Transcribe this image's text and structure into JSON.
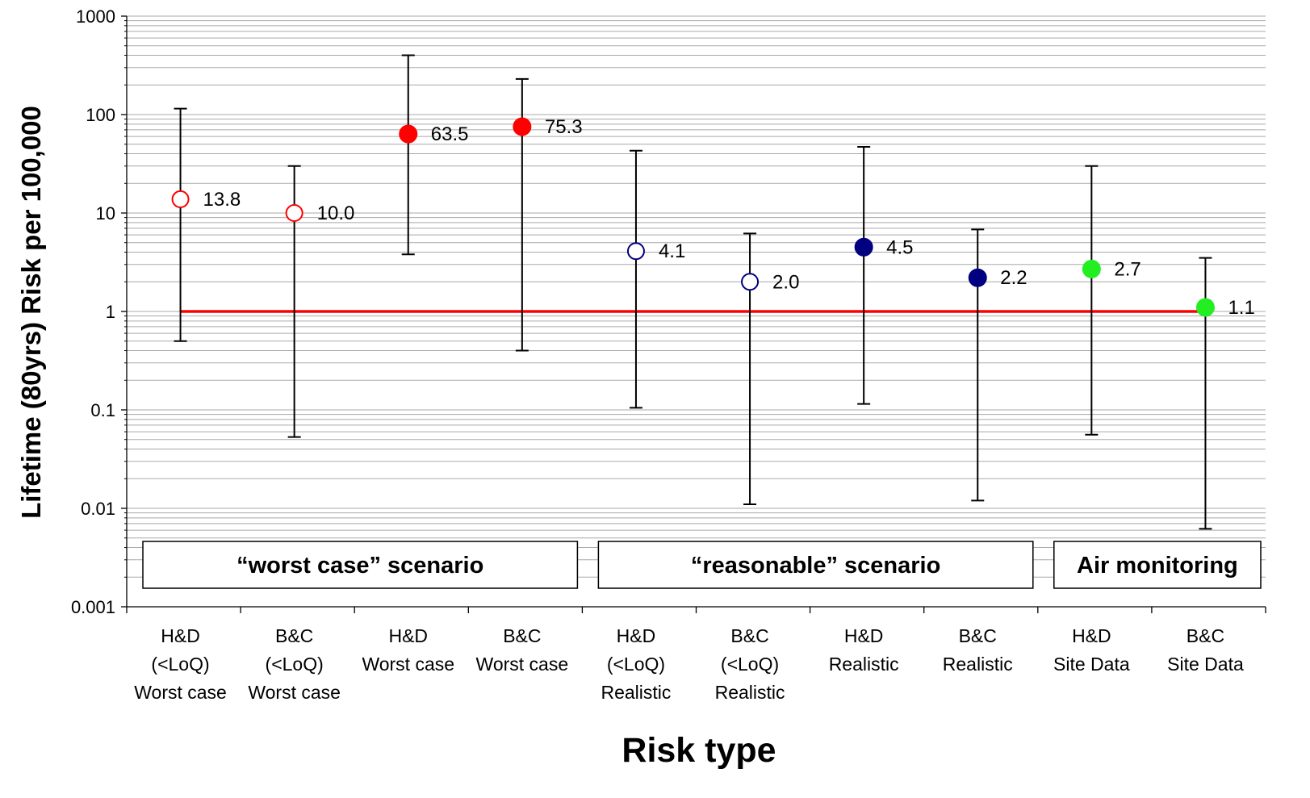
{
  "chart_data": {
    "type": "scatter",
    "ylabel": "Lifetime (80yrs) Risk per 100,000",
    "xlabel": "Risk type",
    "y_scale": "log",
    "ylim": [
      0.001,
      1000
    ],
    "y_ticks": [
      "1000",
      "100",
      "10",
      "1",
      "0.1",
      "0.01",
      "0.001"
    ],
    "reference_line": {
      "y": 1,
      "color": "#ff0000"
    },
    "colors": {
      "red": "#ff0000",
      "navy": "#000080",
      "green": "#22ee22"
    },
    "categories": [
      {
        "label_lines": [
          "H&D",
          "(<LoQ)",
          "Worst case"
        ],
        "value": 13.8,
        "value_label": "13.8",
        "lower": 0.5,
        "upper": 115,
        "color": "red",
        "filled": false
      },
      {
        "label_lines": [
          "B&C",
          "(<LoQ)",
          "Worst case"
        ],
        "value": 10.0,
        "value_label": "10.0",
        "lower": 0.053,
        "upper": 30,
        "color": "red",
        "filled": false
      },
      {
        "label_lines": [
          "H&D",
          "Worst case"
        ],
        "value": 63.5,
        "value_label": "63.5",
        "lower": 3.8,
        "upper": 400,
        "color": "red",
        "filled": true
      },
      {
        "label_lines": [
          "B&C",
          "Worst case"
        ],
        "value": 75.3,
        "value_label": "75.3",
        "lower": 0.4,
        "upper": 230,
        "color": "red",
        "filled": true
      },
      {
        "label_lines": [
          "H&D",
          "(<LoQ)",
          "Realistic"
        ],
        "value": 4.1,
        "value_label": "4.1",
        "lower": 0.105,
        "upper": 43,
        "color": "navy",
        "filled": false
      },
      {
        "label_lines": [
          "B&C",
          "(<LoQ)",
          "Realistic"
        ],
        "value": 2.0,
        "value_label": "2.0",
        "lower": 0.011,
        "upper": 6.2,
        "color": "navy",
        "filled": false
      },
      {
        "label_lines": [
          "H&D",
          "Realistic"
        ],
        "value": 4.5,
        "value_label": "4.5",
        "lower": 0.115,
        "upper": 47,
        "color": "navy",
        "filled": true
      },
      {
        "label_lines": [
          "B&C",
          "Realistic"
        ],
        "value": 2.2,
        "value_label": "2.2",
        "lower": 0.012,
        "upper": 6.8,
        "color": "navy",
        "filled": true
      },
      {
        "label_lines": [
          "H&D",
          "Site Data"
        ],
        "value": 2.7,
        "value_label": "2.7",
        "lower": 0.056,
        "upper": 30,
        "color": "green",
        "filled": true
      },
      {
        "label_lines": [
          "B&C",
          "Site Data"
        ],
        "value": 1.1,
        "value_label": "1.1",
        "lower": 0.0062,
        "upper": 3.5,
        "color": "green",
        "filled": true
      }
    ],
    "groups": [
      {
        "label": "“worst case” scenario",
        "from": 0,
        "to": 3
      },
      {
        "label": "“reasonable” scenario",
        "from": 4,
        "to": 7
      },
      {
        "label": "Air monitoring",
        "from": 8,
        "to": 9
      }
    ]
  }
}
